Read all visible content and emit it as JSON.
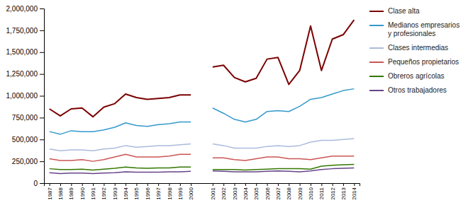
{
  "chart_data": {
    "type": "line",
    "categories": [
      "1987",
      "1988",
      "1989",
      "1990",
      "1991",
      "1992",
      "1993",
      "1994",
      "1995",
      "1996",
      "1997",
      "1998",
      "1999",
      "2000",
      null,
      "2001",
      "2002",
      "2003",
      "2004",
      "2005",
      "2006",
      "2007",
      "2008",
      "2009",
      "2010",
      "2011",
      "2012",
      "2013",
      "2014"
    ],
    "series": [
      {
        "name": "Clase alta",
        "color": "#7B0000",
        "values": [
          850000,
          770000,
          850000,
          860000,
          760000,
          870000,
          910000,
          1020000,
          980000,
          960000,
          970000,
          980000,
          1010000,
          1010000,
          null,
          1330000,
          1350000,
          1210000,
          1160000,
          1200000,
          1420000,
          1440000,
          1130000,
          1290000,
          1800000,
          1290000,
          1650000,
          1700000,
          1870000
        ]
      },
      {
        "name": "Medianos empresarios\ny profesionales",
        "color": "#3399CC",
        "values": [
          590000,
          560000,
          600000,
          590000,
          590000,
          610000,
          640000,
          690000,
          660000,
          650000,
          670000,
          680000,
          700000,
          700000,
          null,
          860000,
          800000,
          730000,
          700000,
          730000,
          820000,
          830000,
          820000,
          880000,
          960000,
          980000,
          1020000,
          1060000,
          1080000
        ]
      },
      {
        "name": "Clases intermedias",
        "color": "#AABBDD",
        "values": [
          390000,
          370000,
          380000,
          380000,
          370000,
          390000,
          400000,
          430000,
          410000,
          420000,
          430000,
          430000,
          440000,
          450000,
          null,
          450000,
          430000,
          400000,
          400000,
          400000,
          420000,
          430000,
          420000,
          430000,
          470000,
          490000,
          490000,
          500000,
          510000
        ]
      },
      {
        "name": "Pequeños propietarios",
        "color": "#CC5555",
        "values": [
          280000,
          260000,
          260000,
          270000,
          250000,
          270000,
          300000,
          330000,
          300000,
          300000,
          300000,
          310000,
          330000,
          330000,
          null,
          290000,
          290000,
          270000,
          260000,
          280000,
          300000,
          300000,
          280000,
          280000,
          270000,
          290000,
          310000,
          310000,
          310000
        ]
      },
      {
        "name": "Obreros agrícolas",
        "color": "#337700",
        "values": [
          165000,
          155000,
          155000,
          160000,
          150000,
          160000,
          170000,
          185000,
          175000,
          170000,
          175000,
          175000,
          185000,
          185000,
          null,
          155000,
          155000,
          155000,
          150000,
          155000,
          160000,
          165000,
          165000,
          165000,
          160000,
          195000,
          205000,
          210000,
          215000
        ]
      },
      {
        "name": "Otros trabajadores",
        "color": "#664488",
        "values": [
          120000,
          110000,
          115000,
          115000,
          110000,
          115000,
          120000,
          130000,
          125000,
          125000,
          125000,
          130000,
          130000,
          135000,
          null,
          140000,
          135000,
          130000,
          130000,
          130000,
          135000,
          140000,
          135000,
          130000,
          140000,
          155000,
          165000,
          170000,
          175000
        ]
      }
    ],
    "ylim": [
      0,
      2000000
    ],
    "yticks": [
      0,
      {
        "value": 250000,
        "label": "250,000"
      },
      {
        "value": 500000,
        "label": "500,000"
      },
      {
        "value": 750000,
        "label": "750,000"
      },
      {
        "value": 1000000,
        "label": "1,000,000"
      },
      {
        "value": 1250000,
        "label": "1,250,000"
      },
      {
        "value": 1500000,
        "label": "1,500,000"
      },
      {
        "value": 1750000,
        "label": "1,750,000"
      },
      {
        "value": 2000000,
        "label": "2,000,000"
      }
    ],
    "grid": false,
    "legend": "right"
  }
}
